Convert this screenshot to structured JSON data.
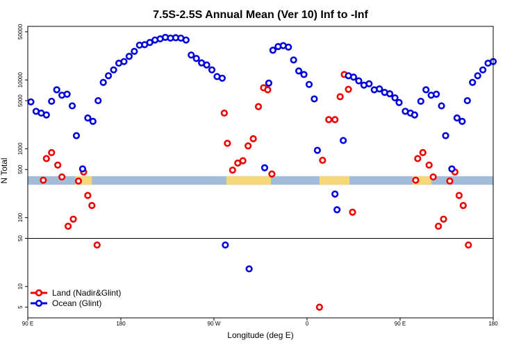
{
  "colors": {
    "land": "#ee0000",
    "ocean": "#0000dd",
    "map_ocean": "#a3bcd9",
    "map_land": "#f6d878",
    "frame": "#000000",
    "background": "#ffffff"
  },
  "chart_data": {
    "type": "scatter",
    "title": "7.5S-2.5S Annual Mean (Ver 10)   Inf to -Inf",
    "xlabel": "Longitude (deg E)",
    "ylabel": "N Total",
    "yscale": "log",
    "ylim": [
      3.5,
      60000
    ],
    "xlim": [
      0,
      450
    ],
    "x_tick_positions": [
      0,
      90,
      180,
      270,
      360,
      450
    ],
    "x_tick_labels": [
      "90 E",
      "180",
      "90 W",
      "0",
      "90 E",
      "180"
    ],
    "y_tick_values": [
      5,
      10,
      50,
      100,
      500,
      1000,
      5000,
      10000,
      50000
    ],
    "y_tick_labels": [
      "5",
      "10",
      "50",
      "100",
      "500",
      "1000",
      "5000",
      "10000",
      "50000"
    ],
    "divider_y": 50,
    "map_band": {
      "y_range": [
        300,
        400
      ],
      "land_spans": [
        [
          46,
          62
        ],
        [
          192,
          235
        ],
        [
          282,
          311
        ],
        [
          372,
          390
        ]
      ]
    },
    "legend": {
      "position": "bottom-left",
      "entries": [
        {
          "label": "Land (Nadir&Glint)",
          "series": "land"
        },
        {
          "label": "Ocean (Glint)",
          "series": "ocean"
        }
      ]
    },
    "series": [
      {
        "name": "Land (Nadir&Glint)",
        "key": "land",
        "points": [
          [
            15,
            350
          ],
          [
            18,
            720
          ],
          [
            23,
            880
          ],
          [
            29,
            580
          ],
          [
            33,
            390
          ],
          [
            39,
            75
          ],
          [
            44,
            95
          ],
          [
            49,
            340
          ],
          [
            54,
            460
          ],
          [
            58,
            210
          ],
          [
            62,
            150
          ],
          [
            67,
            40
          ],
          [
            190,
            3300
          ],
          [
            193,
            1200
          ],
          [
            198,
            490
          ],
          [
            203,
            620
          ],
          [
            208,
            670
          ],
          [
            213,
            1100
          ],
          [
            218,
            1400
          ],
          [
            223,
            4100
          ],
          [
            228,
            7700
          ],
          [
            232,
            7200
          ],
          [
            236,
            430
          ],
          [
            282,
            5
          ],
          [
            285,
            680
          ],
          [
            291,
            2650
          ],
          [
            297,
            2650
          ],
          [
            302,
            5700
          ],
          [
            306,
            12000
          ],
          [
            310,
            7300
          ],
          [
            314,
            120
          ],
          [
            375,
            350
          ],
          [
            377,
            720
          ],
          [
            382,
            880
          ],
          [
            388,
            580
          ],
          [
            392,
            390
          ],
          [
            397,
            75
          ],
          [
            402,
            95
          ],
          [
            408,
            340
          ],
          [
            413,
            460
          ],
          [
            417,
            210
          ],
          [
            421,
            150
          ],
          [
            426,
            40
          ]
        ]
      },
      {
        "name": "Ocean (Glint)",
        "key": "ocean",
        "points": [
          [
            3,
            4800
          ],
          [
            8,
            3500
          ],
          [
            13,
            3300
          ],
          [
            18,
            3100
          ],
          [
            23,
            4900
          ],
          [
            28,
            7200
          ],
          [
            33,
            6000
          ],
          [
            38,
            6200
          ],
          [
            43,
            4200
          ],
          [
            47,
            1550
          ],
          [
            53,
            510
          ],
          [
            58,
            2800
          ],
          [
            63,
            2500
          ],
          [
            68,
            5000
          ],
          [
            73,
            9200
          ],
          [
            78,
            11500
          ],
          [
            83,
            14000
          ],
          [
            88,
            17500
          ],
          [
            93,
            18500
          ],
          [
            98,
            22000
          ],
          [
            103,
            26000
          ],
          [
            108,
            32000
          ],
          [
            113,
            32500
          ],
          [
            118,
            35000
          ],
          [
            123,
            38000
          ],
          [
            128,
            39500
          ],
          [
            133,
            41500
          ],
          [
            138,
            40500
          ],
          [
            143,
            41000
          ],
          [
            148,
            40500
          ],
          [
            153,
            38000
          ],
          [
            158,
            23000
          ],
          [
            163,
            20500
          ],
          [
            168,
            17700
          ],
          [
            173,
            16500
          ],
          [
            178,
            14000
          ],
          [
            183,
            11200
          ],
          [
            188,
            10600
          ],
          [
            191,
            40
          ],
          [
            214,
            18
          ],
          [
            229,
            530
          ],
          [
            233,
            9000
          ],
          [
            237,
            27000
          ],
          [
            242,
            30500
          ],
          [
            247,
            31500
          ],
          [
            252,
            30000
          ],
          [
            257,
            19500
          ],
          [
            262,
            13500
          ],
          [
            267,
            12000
          ],
          [
            272,
            8600
          ],
          [
            277,
            5300
          ],
          [
            280,
            950
          ],
          [
            297,
            220
          ],
          [
            299,
            130
          ],
          [
            305,
            1320
          ],
          [
            310,
            11500
          ],
          [
            315,
            11000
          ],
          [
            320,
            9700
          ],
          [
            325,
            8400
          ],
          [
            330,
            8800
          ],
          [
            335,
            7200
          ],
          [
            340,
            7400
          ],
          [
            345,
            6600
          ],
          [
            350,
            6300
          ],
          [
            355,
            5500
          ],
          [
            359,
            4700
          ],
          [
            365,
            3500
          ],
          [
            370,
            3300
          ],
          [
            374,
            3100
          ],
          [
            380,
            4900
          ],
          [
            385,
            7200
          ],
          [
            390,
            6000
          ],
          [
            395,
            6200
          ],
          [
            400,
            4200
          ],
          [
            404,
            1550
          ],
          [
            410,
            510
          ],
          [
            415,
            2800
          ],
          [
            420,
            2500
          ],
          [
            425,
            5000
          ],
          [
            430,
            9200
          ],
          [
            435,
            11500
          ],
          [
            440,
            14000
          ],
          [
            445,
            17500
          ],
          [
            450,
            18500
          ]
        ]
      }
    ]
  }
}
